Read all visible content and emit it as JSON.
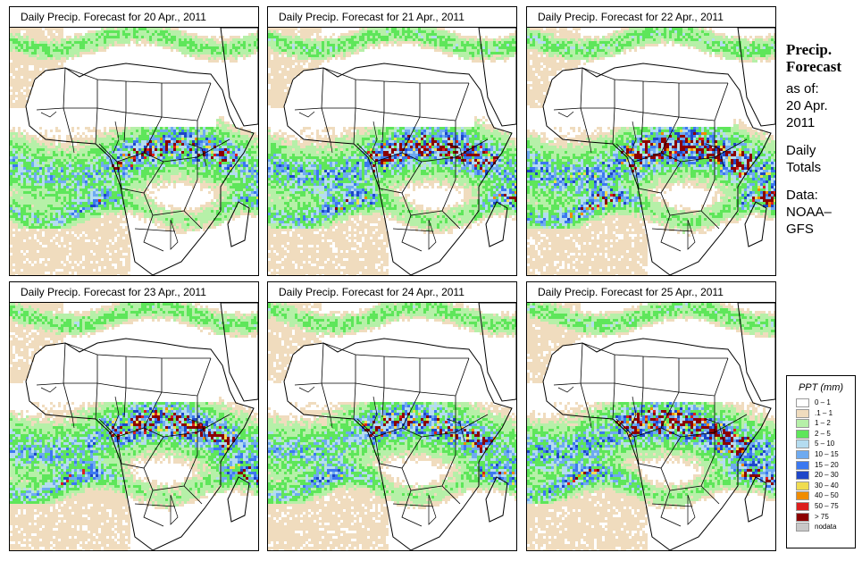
{
  "panels": [
    {
      "title": "Daily Precip. Forecast for  20 Apr., 2011",
      "rain_intensity": 1.0
    },
    {
      "title": "Daily Precip. Forecast for  21 Apr., 2011",
      "rain_intensity": 1.1
    },
    {
      "title": "Daily Precip. Forecast for  22 Apr., 2011",
      "rain_intensity": 1.15
    },
    {
      "title": "Daily Precip. Forecast for  23 Apr., 2011",
      "rain_intensity": 1.05
    },
    {
      "title": "Daily Precip. Forecast for  24 Apr., 2011",
      "rain_intensity": 1.0
    },
    {
      "title": "Daily Precip. Forecast for  25 Apr., 2011",
      "rain_intensity": 1.1
    }
  ],
  "side": {
    "heading_1": "Precip.",
    "heading_2": "Forecast",
    "as_of_1": "as of:",
    "as_of_2": "20 Apr.",
    "as_of_3": "2011",
    "totals_1": "Daily",
    "totals_2": "Totals",
    "data_1": "Data:",
    "data_2": "NOAA–",
    "data_3": "GFS"
  },
  "legend": {
    "title": "PPT (mm)",
    "items": [
      {
        "label": "0 – 1",
        "color": "#ffffff"
      },
      {
        "label": ".1 – 1",
        "color": "#f0dcbe"
      },
      {
        "label": "1 – 2",
        "color": "#b6f0a8"
      },
      {
        "label": "2 – 5",
        "color": "#5ee65a"
      },
      {
        "label": "5 – 10",
        "color": "#b4dcf0"
      },
      {
        "label": "10 – 15",
        "color": "#6eaaf0"
      },
      {
        "label": "15 – 20",
        "color": "#3c78f0"
      },
      {
        "label": "20 – 30",
        "color": "#1e46c8"
      },
      {
        "label": "30 – 40",
        "color": "#f0dc50"
      },
      {
        "label": "40 – 50",
        "color": "#f08c00"
      },
      {
        "label": "50 – 75",
        "color": "#dc1e1e"
      },
      {
        "label": "> 75",
        "color": "#8c0000"
      },
      {
        "label": "nodata",
        "color": "#c8c8c8"
      }
    ]
  }
}
